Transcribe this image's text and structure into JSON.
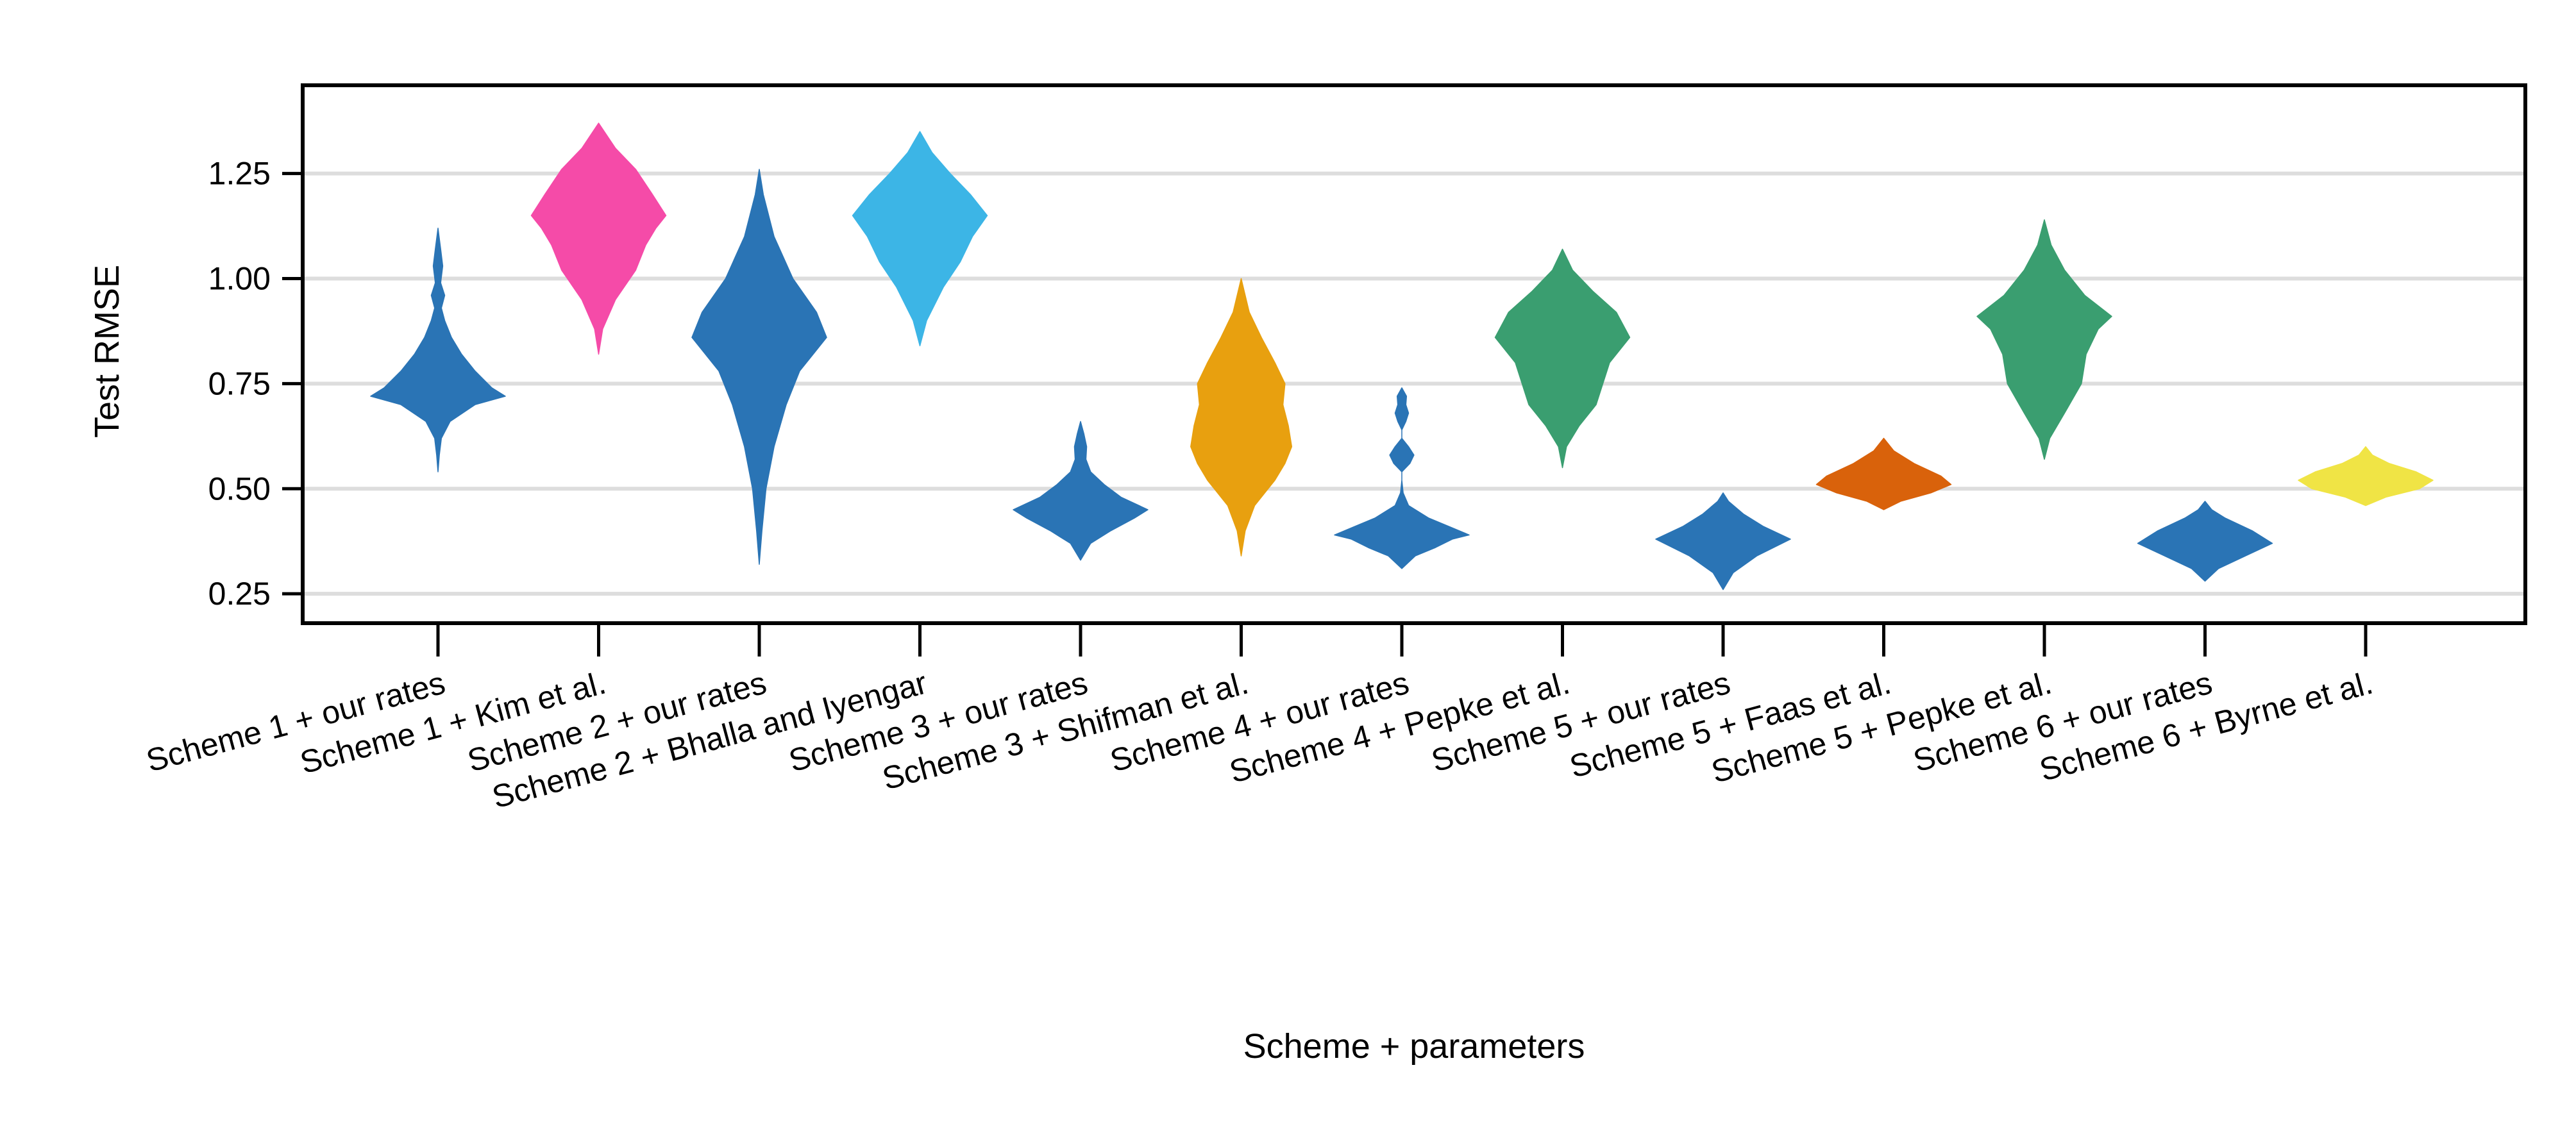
{
  "chart_data": {
    "type": "violin",
    "xlabel": "Scheme + parameters",
    "ylabel": "Test RMSE",
    "ylim": [
      0.18,
      1.46
    ],
    "yticks": [
      0.25,
      0.5,
      0.75,
      1.0,
      1.25
    ],
    "ytick_labels": [
      "0.25",
      "0.50",
      "0.75",
      "1.00",
      "1.25"
    ],
    "grid": "horizontal",
    "categories": [
      "Scheme 1 + our rates",
      "Scheme 1 + Kim et al.",
      "Scheme 2 + our rates",
      "Scheme 2 + Bhalla and Iyengar",
      "Scheme 3 + our rates",
      "Scheme 3 + Shifman et al.",
      "Scheme 4 + our rates",
      "Scheme 4 + Pepke et al.",
      "Scheme 5 + our rates",
      "Scheme 5 + Faas et al.",
      "Scheme 5 + Pepke et al.",
      "Scheme 6 + our rates",
      "Scheme 6 + Byrne et al."
    ],
    "series": [
      {
        "color": "#2a74b5",
        "profile": [
          [
            0.54,
            0
          ],
          [
            0.58,
            0.02
          ],
          [
            0.62,
            0.05
          ],
          [
            0.66,
            0.18
          ],
          [
            0.7,
            0.55
          ],
          [
            0.72,
            1.0
          ],
          [
            0.74,
            0.8
          ],
          [
            0.78,
            0.55
          ],
          [
            0.82,
            0.35
          ],
          [
            0.86,
            0.2
          ],
          [
            0.9,
            0.1
          ],
          [
            0.93,
            0.05
          ],
          [
            0.96,
            0.1
          ],
          [
            0.99,
            0.04
          ],
          [
            1.03,
            0.07
          ],
          [
            1.07,
            0.04
          ],
          [
            1.12,
            0
          ]
        ]
      },
      {
        "color": "#f54ba8",
        "profile": [
          [
            0.82,
            0
          ],
          [
            0.88,
            0.06
          ],
          [
            0.95,
            0.25
          ],
          [
            1.02,
            0.55
          ],
          [
            1.08,
            0.7
          ],
          [
            1.12,
            0.85
          ],
          [
            1.15,
            1.0
          ],
          [
            1.2,
            0.8
          ],
          [
            1.26,
            0.55
          ],
          [
            1.31,
            0.25
          ],
          [
            1.37,
            0
          ]
        ]
      },
      {
        "color": "#2a74b5",
        "profile": [
          [
            0.32,
            0
          ],
          [
            0.4,
            0.04
          ],
          [
            0.5,
            0.1
          ],
          [
            0.6,
            0.22
          ],
          [
            0.7,
            0.4
          ],
          [
            0.78,
            0.6
          ],
          [
            0.86,
            1.0
          ],
          [
            0.92,
            0.85
          ],
          [
            1.0,
            0.5
          ],
          [
            1.1,
            0.22
          ],
          [
            1.2,
            0.06
          ],
          [
            1.26,
            0
          ]
        ]
      },
      {
        "color": "#3cb5e6",
        "profile": [
          [
            0.84,
            0
          ],
          [
            0.9,
            0.1
          ],
          [
            0.98,
            0.35
          ],
          [
            1.04,
            0.6
          ],
          [
            1.1,
            0.78
          ],
          [
            1.15,
            1.0
          ],
          [
            1.2,
            0.75
          ],
          [
            1.25,
            0.45
          ],
          [
            1.3,
            0.18
          ],
          [
            1.35,
            0
          ]
        ]
      },
      {
        "color": "#2a74b5",
        "profile": [
          [
            0.33,
            0
          ],
          [
            0.37,
            0.15
          ],
          [
            0.4,
            0.45
          ],
          [
            0.43,
            0.8
          ],
          [
            0.45,
            1.0
          ],
          [
            0.48,
            0.6
          ],
          [
            0.51,
            0.35
          ],
          [
            0.54,
            0.15
          ],
          [
            0.57,
            0.08
          ],
          [
            0.6,
            0.09
          ],
          [
            0.63,
            0.05
          ],
          [
            0.66,
            0
          ]
        ]
      },
      {
        "color": "#e8a00f",
        "profile": [
          [
            0.34,
            0
          ],
          [
            0.4,
            0.06
          ],
          [
            0.46,
            0.2
          ],
          [
            0.52,
            0.5
          ],
          [
            0.56,
            0.65
          ],
          [
            0.6,
            0.75
          ],
          [
            0.65,
            0.7
          ],
          [
            0.7,
            0.62
          ],
          [
            0.75,
            0.65
          ],
          [
            0.8,
            0.5
          ],
          [
            0.86,
            0.3
          ],
          [
            0.92,
            0.12
          ],
          [
            1.0,
            0
          ]
        ]
      },
      {
        "color": "#2a74b5",
        "profile": [
          [
            0.31,
            0
          ],
          [
            0.34,
            0.2
          ],
          [
            0.36,
            0.5
          ],
          [
            0.38,
            0.75
          ],
          [
            0.39,
            1.0
          ],
          [
            0.41,
            0.7
          ],
          [
            0.43,
            0.4
          ],
          [
            0.46,
            0.1
          ],
          [
            0.49,
            0.02
          ],
          [
            0.52,
            0
          ],
          [
            0.54,
            0
          ],
          [
            0.56,
            0.12
          ],
          [
            0.58,
            0.18
          ],
          [
            0.6,
            0.1
          ],
          [
            0.62,
            0
          ],
          [
            0.64,
            0
          ],
          [
            0.66,
            0.06
          ],
          [
            0.68,
            0.1
          ],
          [
            0.7,
            0.06
          ],
          [
            0.72,
            0.07
          ],
          [
            0.74,
            0
          ]
        ]
      },
      {
        "color": "#3a9e70",
        "profile": [
          [
            0.55,
            0
          ],
          [
            0.6,
            0.06
          ],
          [
            0.65,
            0.25
          ],
          [
            0.7,
            0.5
          ],
          [
            0.75,
            0.6
          ],
          [
            0.8,
            0.7
          ],
          [
            0.86,
            1.0
          ],
          [
            0.92,
            0.8
          ],
          [
            0.97,
            0.45
          ],
          [
            1.02,
            0.15
          ],
          [
            1.07,
            0
          ]
        ]
      },
      {
        "color": "#2a74b5",
        "profile": [
          [
            0.26,
            0
          ],
          [
            0.3,
            0.15
          ],
          [
            0.34,
            0.5
          ],
          [
            0.38,
            1.0
          ],
          [
            0.41,
            0.6
          ],
          [
            0.44,
            0.3
          ],
          [
            0.47,
            0.08
          ],
          [
            0.49,
            0
          ]
        ]
      },
      {
        "color": "#d9620b",
        "profile": [
          [
            0.45,
            0
          ],
          [
            0.47,
            0.25
          ],
          [
            0.49,
            0.7
          ],
          [
            0.51,
            1.0
          ],
          [
            0.53,
            0.85
          ],
          [
            0.56,
            0.45
          ],
          [
            0.59,
            0.15
          ],
          [
            0.62,
            0
          ]
        ]
      },
      {
        "color": "#3a9e70",
        "profile": [
          [
            0.57,
            0
          ],
          [
            0.62,
            0.08
          ],
          [
            0.68,
            0.3
          ],
          [
            0.75,
            0.55
          ],
          [
            0.82,
            0.62
          ],
          [
            0.88,
            0.8
          ],
          [
            0.91,
            1.0
          ],
          [
            0.96,
            0.6
          ],
          [
            1.02,
            0.3
          ],
          [
            1.08,
            0.1
          ],
          [
            1.14,
            0
          ]
        ]
      },
      {
        "color": "#2a74b5",
        "profile": [
          [
            0.28,
            0
          ],
          [
            0.31,
            0.2
          ],
          [
            0.34,
            0.6
          ],
          [
            0.37,
            1.0
          ],
          [
            0.4,
            0.7
          ],
          [
            0.43,
            0.3
          ],
          [
            0.45,
            0.1
          ],
          [
            0.47,
            0
          ]
        ]
      },
      {
        "color": "#f0e445",
        "profile": [
          [
            0.46,
            0
          ],
          [
            0.48,
            0.3
          ],
          [
            0.5,
            0.8
          ],
          [
            0.52,
            1.0
          ],
          [
            0.54,
            0.75
          ],
          [
            0.56,
            0.35
          ],
          [
            0.58,
            0.1
          ],
          [
            0.6,
            0
          ]
        ]
      }
    ]
  }
}
